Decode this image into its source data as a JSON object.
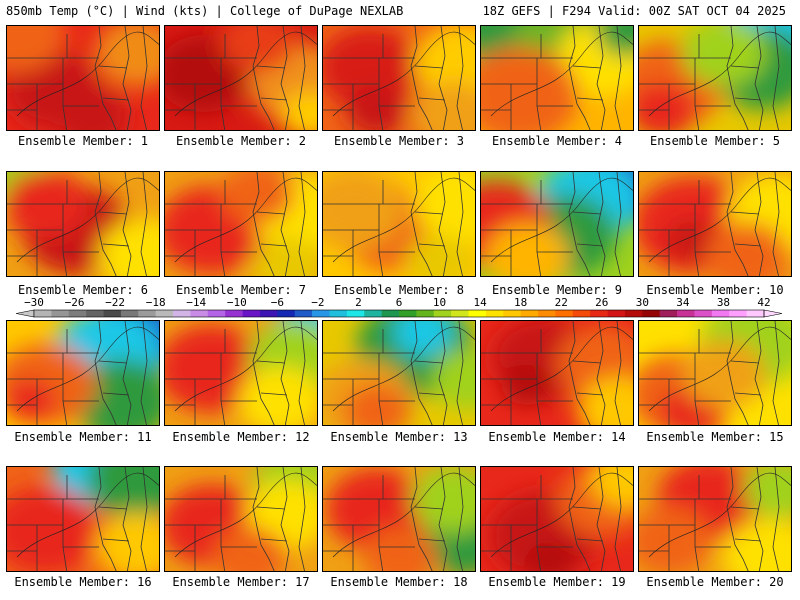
{
  "header": {
    "left": "850mb Temp (°C) | Wind (kts) | College of DuPage NEXLAB",
    "right": "18Z GEFS | F294 Valid: 00Z SAT OCT 04 2025"
  },
  "member_label_prefix": "Ensemble Member:",
  "members": [
    {
      "num": "1",
      "base": "#e8281a",
      "patches": [
        [
          "#c81414",
          0.3,
          0.6,
          0.28
        ],
        [
          "#f06418",
          0.05,
          0.05,
          0.3
        ],
        [
          "#f08c14",
          0.85,
          0.25,
          0.25
        ],
        [
          "#c81414",
          0.55,
          0.85,
          0.22
        ]
      ]
    },
    {
      "num": "2",
      "base": "#d81a14",
      "patches": [
        [
          "#b41010",
          0.25,
          0.45,
          0.28
        ],
        [
          "#f0901a",
          0.88,
          0.55,
          0.3
        ],
        [
          "#ffcc00",
          0.95,
          0.85,
          0.18
        ],
        [
          "#e83c14",
          0.6,
          0.15,
          0.22
        ]
      ]
    },
    {
      "num": "3",
      "base": "#f06418",
      "patches": [
        [
          "#d81a14",
          0.3,
          0.4,
          0.3
        ],
        [
          "#ffcc00",
          0.92,
          0.35,
          0.3
        ],
        [
          "#f0a014",
          0.85,
          0.85,
          0.25
        ],
        [
          "#c81414",
          0.35,
          0.8,
          0.18
        ]
      ]
    },
    {
      "num": "4",
      "base": "#ffb400",
      "patches": [
        [
          "#2d9a3c",
          0.2,
          0.0,
          0.32
        ],
        [
          "#6cb428",
          0.55,
          0.05,
          0.3
        ],
        [
          "#ffe100",
          0.8,
          0.3,
          0.28
        ],
        [
          "#f06418",
          0.25,
          0.65,
          0.35
        ],
        [
          "#2d9a3c",
          0.95,
          0.05,
          0.18
        ]
      ]
    },
    {
      "num": "5",
      "base": "#e8c800",
      "patches": [
        [
          "#1ec8e6",
          0.9,
          0.05,
          0.3
        ],
        [
          "#2d9a3c",
          0.8,
          0.4,
          0.3
        ],
        [
          "#f06418",
          0.2,
          0.55,
          0.32
        ],
        [
          "#e8281a",
          0.15,
          0.8,
          0.2
        ],
        [
          "#a0d21e",
          0.55,
          0.25,
          0.25
        ]
      ]
    },
    {
      "num": "6",
      "base": "#f0a014",
      "patches": [
        [
          "#c81414",
          0.45,
          0.55,
          0.32
        ],
        [
          "#a0d21e",
          0.05,
          0.05,
          0.22
        ],
        [
          "#ffe100",
          0.9,
          0.8,
          0.28
        ],
        [
          "#e8281a",
          0.25,
          0.3,
          0.25
        ]
      ]
    },
    {
      "num": "7",
      "base": "#f0a014",
      "patches": [
        [
          "#e8281a",
          0.3,
          0.55,
          0.32
        ],
        [
          "#ffe100",
          0.9,
          0.4,
          0.3
        ],
        [
          "#f06418",
          0.6,
          0.2,
          0.22
        ],
        [
          "#e8c800",
          0.8,
          0.9,
          0.22
        ]
      ]
    },
    {
      "num": "8",
      "base": "#ffc800",
      "patches": [
        [
          "#f06418",
          0.45,
          0.55,
          0.3
        ],
        [
          "#f0a014",
          0.2,
          0.35,
          0.3
        ],
        [
          "#ffe100",
          0.9,
          0.3,
          0.28
        ],
        [
          "#e8c800",
          0.75,
          0.85,
          0.2
        ]
      ]
    },
    {
      "num": "9",
      "base": "#a0d21e",
      "patches": [
        [
          "#1e64c8",
          0.9,
          0.1,
          0.3
        ],
        [
          "#1ec8e6",
          0.7,
          0.25,
          0.3
        ],
        [
          "#2d9a3c",
          0.55,
          0.6,
          0.3
        ],
        [
          "#e8281a",
          0.1,
          0.5,
          0.32
        ],
        [
          "#ffb400",
          0.3,
          0.8,
          0.25
        ]
      ]
    },
    {
      "num": "10",
      "base": "#f0a014",
      "patches": [
        [
          "#e8281a",
          0.35,
          0.5,
          0.35
        ],
        [
          "#c81414",
          0.35,
          0.65,
          0.15
        ],
        [
          "#ffe100",
          0.9,
          0.4,
          0.3
        ],
        [
          "#f06418",
          0.7,
          0.8,
          0.25
        ]
      ]
    },
    {
      "num": "11",
      "base": "#ffc800",
      "patches": [
        [
          "#1e64c8",
          0.85,
          0.1,
          0.3
        ],
        [
          "#1ec8e6",
          0.65,
          0.3,
          0.32
        ],
        [
          "#2d9a3c",
          0.75,
          0.75,
          0.3
        ],
        [
          "#f06418",
          0.25,
          0.6,
          0.3
        ],
        [
          "#e8281a",
          0.15,
          0.75,
          0.15
        ]
      ]
    },
    {
      "num": "12",
      "base": "#f0a014",
      "patches": [
        [
          "#e8281a",
          0.3,
          0.45,
          0.32
        ],
        [
          "#1ec8e6",
          0.95,
          0.05,
          0.2
        ],
        [
          "#a0d21e",
          0.85,
          0.35,
          0.28
        ],
        [
          "#ffe100",
          0.75,
          0.75,
          0.25
        ]
      ]
    },
    {
      "num": "13",
      "base": "#e8c800",
      "patches": [
        [
          "#2d9a3c",
          0.6,
          0.25,
          0.35
        ],
        [
          "#1ec8e6",
          0.65,
          0.1,
          0.18
        ],
        [
          "#f0a014",
          0.25,
          0.75,
          0.3
        ],
        [
          "#f06418",
          0.35,
          0.85,
          0.2
        ],
        [
          "#a0d21e",
          0.95,
          0.55,
          0.22
        ]
      ]
    },
    {
      "num": "14",
      "base": "#e8281a",
      "patches": [
        [
          "#c81414",
          0.4,
          0.35,
          0.3
        ],
        [
          "#f06418",
          0.8,
          0.4,
          0.28
        ],
        [
          "#ffc800",
          0.9,
          0.85,
          0.25
        ],
        [
          "#b41010",
          0.3,
          0.6,
          0.15
        ]
      ]
    },
    {
      "num": "15",
      "base": "#ffe100",
      "patches": [
        [
          "#a0d21e",
          0.75,
          0.2,
          0.32
        ],
        [
          "#f06418",
          0.25,
          0.7,
          0.3
        ],
        [
          "#e8281a",
          0.35,
          0.85,
          0.2
        ],
        [
          "#f0a014",
          0.55,
          0.5,
          0.25
        ]
      ]
    },
    {
      "num": "16",
      "base": "#f06418",
      "patches": [
        [
          "#1ec8e6",
          0.6,
          0.0,
          0.28
        ],
        [
          "#2d9a3c",
          0.85,
          0.1,
          0.3
        ],
        [
          "#e8281a",
          0.25,
          0.6,
          0.32
        ],
        [
          "#ffc800",
          0.85,
          0.75,
          0.25
        ]
      ]
    },
    {
      "num": "17",
      "base": "#f0a014",
      "patches": [
        [
          "#e8281a",
          0.3,
          0.55,
          0.3
        ],
        [
          "#a0d21e",
          0.85,
          0.15,
          0.25
        ],
        [
          "#ffe100",
          0.8,
          0.45,
          0.25
        ],
        [
          "#f06418",
          0.55,
          0.85,
          0.22
        ]
      ]
    },
    {
      "num": "18",
      "base": "#f0a014",
      "patches": [
        [
          "#e8281a",
          0.35,
          0.4,
          0.3
        ],
        [
          "#2d9a3c",
          0.92,
          0.7,
          0.25
        ],
        [
          "#a0d21e",
          0.85,
          0.3,
          0.25
        ],
        [
          "#f06418",
          0.5,
          0.85,
          0.22
        ]
      ]
    },
    {
      "num": "19",
      "base": "#e8281a",
      "patches": [
        [
          "#c81414",
          0.4,
          0.65,
          0.32
        ],
        [
          "#b41010",
          0.45,
          0.9,
          0.15
        ],
        [
          "#f06418",
          0.8,
          0.3,
          0.28
        ],
        [
          "#ffc800",
          0.95,
          0.1,
          0.22
        ]
      ]
    },
    {
      "num": "20",
      "base": "#f0a014",
      "patches": [
        [
          "#e8281a",
          0.45,
          0.3,
          0.3
        ],
        [
          "#a0d21e",
          0.92,
          0.2,
          0.22
        ],
        [
          "#ffe100",
          0.85,
          0.85,
          0.28
        ],
        [
          "#f06418",
          0.2,
          0.7,
          0.25
        ]
      ]
    }
  ],
  "colorbar": {
    "ticks": [
      "−30",
      "−26",
      "−22",
      "−18",
      "−14",
      "−10",
      "−6",
      "−2",
      "2",
      "6",
      "10",
      "14",
      "18",
      "22",
      "26",
      "30",
      "34",
      "38",
      "42"
    ],
    "colors": [
      "#b4b4b4",
      "#969696",
      "#7d7d7d",
      "#646464",
      "#4b4b4b",
      "#787878",
      "#9b9b9b",
      "#b9b9b9",
      "#d2b4e6",
      "#c88ce6",
      "#b464e6",
      "#9632d2",
      "#6a14c8",
      "#3c14b4",
      "#1428b4",
      "#1e5ac8",
      "#2896e6",
      "#1ebedc",
      "#1ee6e6",
      "#1eb4a0",
      "#1e9650",
      "#32a028",
      "#64b41e",
      "#a0d21e",
      "#d2e61e",
      "#ffff00",
      "#ffe100",
      "#ffc800",
      "#ffaa00",
      "#ff8c00",
      "#ff6e00",
      "#f54b0a",
      "#e62814",
      "#d21414",
      "#b40a0a",
      "#960505",
      "#a01e5a",
      "#c83296",
      "#dc50c8",
      "#f078f0",
      "#ffa0ff",
      "#ffc8ff"
    ]
  }
}
